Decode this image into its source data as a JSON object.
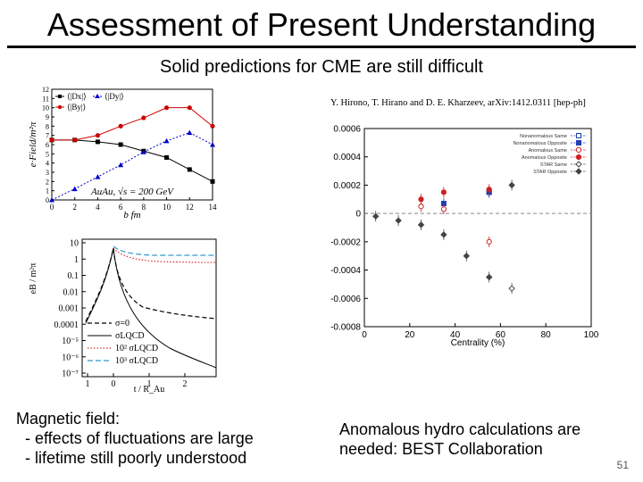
{
  "slide": {
    "title": "Assessment of Present Understanding",
    "subtitle": "Solid predictions for CME are still difficult",
    "caption_left": "Magnetic field:\n  - effects of fluctuations are large\n  - lifetime still poorly understood",
    "caption_right": "Anomalous hydro calculations are\nneeded: BEST Collaboration",
    "page_number": "51"
  },
  "chart_data": [
    {
      "type": "line",
      "ylabel": "e·Field/m²π",
      "xlabel": "b fm",
      "annotation": "AuAu, √s = 200 GeV",
      "x": [
        0,
        2,
        4,
        6,
        8,
        10,
        12,
        14
      ],
      "xticks": [
        "0",
        "2",
        "4",
        "6",
        "8",
        "10",
        "12",
        "14"
      ],
      "yticks": [
        "0",
        "1",
        "2",
        "3",
        "4",
        "5",
        "6",
        "7",
        "8",
        "9",
        "10",
        "11",
        "12"
      ],
      "xlim": [
        0,
        14
      ],
      "ylim": [
        0,
        12
      ],
      "series": [
        {
          "name": "⟨|Dx|⟩",
          "color": "#000000",
          "marker": "square",
          "values": [
            6.5,
            6.5,
            6.3,
            6.0,
            5.3,
            4.6,
            3.3,
            2.0
          ]
        },
        {
          "name": "⟨|Dy|⟩",
          "color": "#0000cc",
          "marker": "triangle",
          "values": [
            0.0,
            1.2,
            2.5,
            3.8,
            5.2,
            6.4,
            7.3,
            6.0
          ]
        },
        {
          "name": "⟨|By|⟩",
          "color": "#cc0000",
          "marker": "circle",
          "values": [
            6.5,
            6.5,
            7.0,
            8.0,
            8.9,
            10.0,
            10.0,
            8.0
          ]
        }
      ]
    },
    {
      "type": "line",
      "ylabel": "eB / m²π",
      "xlabel": "t / R_Au",
      "yticks": [
        "10",
        "1",
        "0.1",
        "0.01",
        "0.001",
        "0.0001",
        "10⁻⁵",
        "10⁻⁶",
        "10⁻⁷"
      ],
      "xticks": [
        "1",
        "0",
        "1",
        "2"
      ],
      "series": [
        {
          "name": "σ=0",
          "color": "#000000",
          "style": "dashed"
        },
        {
          "name": "σLQCD",
          "color": "#000000",
          "style": "solid"
        },
        {
          "name": "10² σLQCD",
          "color": "#cc0000",
          "style": "dotted"
        },
        {
          "name": "10³ σLQCD",
          "color": "#3399cc",
          "style": "dashed"
        }
      ]
    },
    {
      "type": "scatter",
      "header": "Y. Hirono, T. Hirano and D. E. Kharzeev, arXiv:1412.0311 [hep-ph]",
      "xlabel": "Centrality (%)",
      "xlim": [
        0,
        100
      ],
      "ylim": [
        -0.0008,
        0.0006
      ],
      "xticks": [
        "0",
        "20",
        "40",
        "60",
        "80",
        "100"
      ],
      "yticks": [
        "0.0006",
        "0.0004",
        "0.0002",
        "0",
        "-0.0002",
        "-0.0004",
        "-0.0006",
        "-0.0008"
      ],
      "series": [
        {
          "name": "Nonanomalous Same",
          "color": "#1f3fb3",
          "marker": "open-square",
          "x": [
            55
          ],
          "y": [
            0.00015
          ]
        },
        {
          "name": "Nonanomalous Opposite",
          "color": "#1f3fb3",
          "marker": "filled-square",
          "x": [
            35,
            55
          ],
          "y": [
            7e-05,
            0.00015
          ]
        },
        {
          "name": "Anomalous Same",
          "color": "#cc2222",
          "marker": "open-circle",
          "x": [
            25,
            35,
            55
          ],
          "y": [
            5e-05,
            3e-05,
            -0.0002
          ]
        },
        {
          "name": "Anomalous Opposite",
          "color": "#cc2222",
          "marker": "filled-circle",
          "x": [
            25,
            35,
            55
          ],
          "y": [
            0.0001,
            0.00015,
            0.00017
          ]
        },
        {
          "name": "STAR Same",
          "color": "#444444",
          "marker": "open-diamond",
          "x": [
            65
          ],
          "y": [
            -0.00053
          ]
        },
        {
          "name": "STAR Opposite",
          "color": "#444444",
          "marker": "filled-diamond",
          "x": [
            5,
            15,
            25,
            35,
            45,
            55,
            65
          ],
          "y": [
            -2e-05,
            -5e-05,
            -8e-05,
            -0.00015,
            -0.0003,
            -0.00045,
            0.0002
          ]
        }
      ]
    }
  ]
}
